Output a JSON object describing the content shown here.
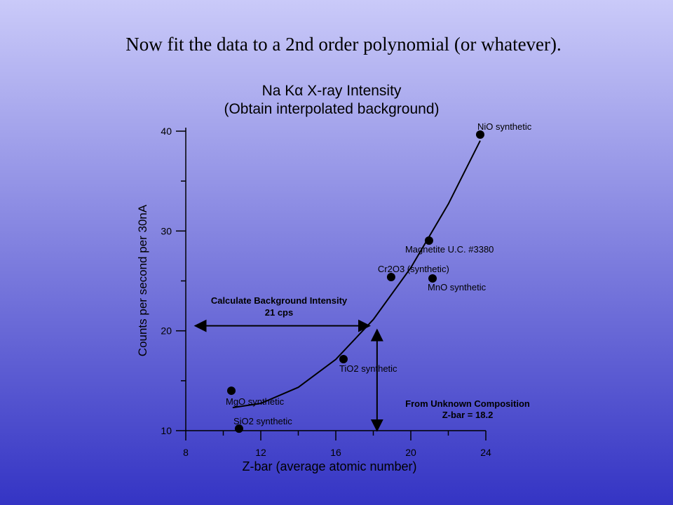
{
  "slide_title": "Now fit the data to a 2nd order polynomial (or whatever).",
  "chart_data": {
    "type": "scatter",
    "title": "Na Kα X-ray Intensity",
    "subtitle": "(Obtain interpolated background)",
    "x_label": "Z-bar (average atomic number)",
    "y_label": "Counts per second per 30nA",
    "xlim": [
      8,
      24
    ],
    "ylim": [
      10,
      40
    ],
    "xticks": [
      8,
      12,
      16,
      20,
      24
    ],
    "yticks": [
      10,
      20,
      30,
      40
    ],
    "xticks_minor": [
      10,
      14,
      18,
      22
    ],
    "yticks_minor": [
      15,
      25,
      35
    ],
    "point_color": "#000000",
    "line_color": "#000000",
    "points": {
      "labels": [
        "NiO synthetic",
        "Magnetite U.C. #3380",
        "Cr2O3 (synthetic)",
        "MnO synthetic",
        "TiO2 synthetic",
        "MgO synthetic",
        "SiO2 synthetic"
      ],
      "x": [
        23.7,
        20.97,
        18.95,
        21.16,
        16.41,
        10.43,
        10.84
      ],
      "values": [
        39.66,
        29.04,
        25.39,
        25.25,
        17.17,
        14.0,
        10.2
      ]
    },
    "fit": {
      "x": [
        10.5,
        12,
        14,
        16,
        18,
        20,
        22,
        23.7
      ],
      "values": [
        12.31,
        12.73,
        14.34,
        17.14,
        21.13,
        26.32,
        32.7,
        39.05
      ]
    },
    "annotations": [
      {
        "lines": [
          "Calculate Background Intensity",
          "21 cps"
        ],
        "x": [
          8.5,
          17.8
        ],
        "y": 20.5
      },
      {
        "lines": [
          "From Unknown Composition",
          "Z-bar = 18.2"
        ],
        "x": 18.2,
        "y": [
          10,
          20.1
        ]
      }
    ]
  }
}
